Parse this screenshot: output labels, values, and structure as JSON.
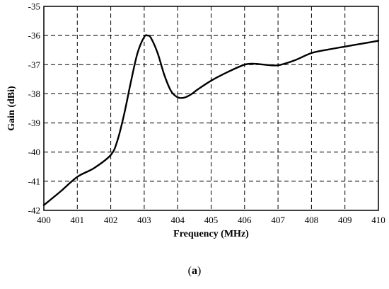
{
  "chart_data": {
    "type": "line",
    "title": "",
    "xlabel": "Frequency (MHz)",
    "ylabel": "Gain (dBi)",
    "xlim": [
      400,
      410
    ],
    "ylim": [
      -42,
      -35
    ],
    "xticks": [
      400,
      401,
      402,
      403,
      404,
      405,
      406,
      407,
      408,
      409,
      410
    ],
    "yticks": [
      -35,
      -36,
      -37,
      -38,
      -39,
      -40,
      -41,
      -42
    ],
    "grid": true,
    "series": [
      {
        "x": [
          400,
          400.5,
          401,
          401.5,
          402,
          402.2,
          402.4,
          402.6,
          402.8,
          403,
          403.1,
          403.2,
          403.4,
          403.6,
          403.8,
          404,
          404.2,
          404.4,
          404.6,
          405,
          405.5,
          406,
          406.3,
          406.6,
          407,
          407.5,
          408,
          408.5,
          409,
          409.5,
          410
        ],
        "y": [
          -41.82,
          -41.35,
          -40.85,
          -40.55,
          -40.1,
          -39.6,
          -38.7,
          -37.6,
          -36.6,
          -36.05,
          -36.0,
          -36.08,
          -36.6,
          -37.35,
          -37.9,
          -38.12,
          -38.13,
          -38.02,
          -37.85,
          -37.55,
          -37.25,
          -37.0,
          -36.97,
          -37.0,
          -37.02,
          -36.85,
          -36.6,
          -36.48,
          -36.38,
          -36.28,
          -36.18
        ]
      }
    ]
  },
  "caption": "a"
}
